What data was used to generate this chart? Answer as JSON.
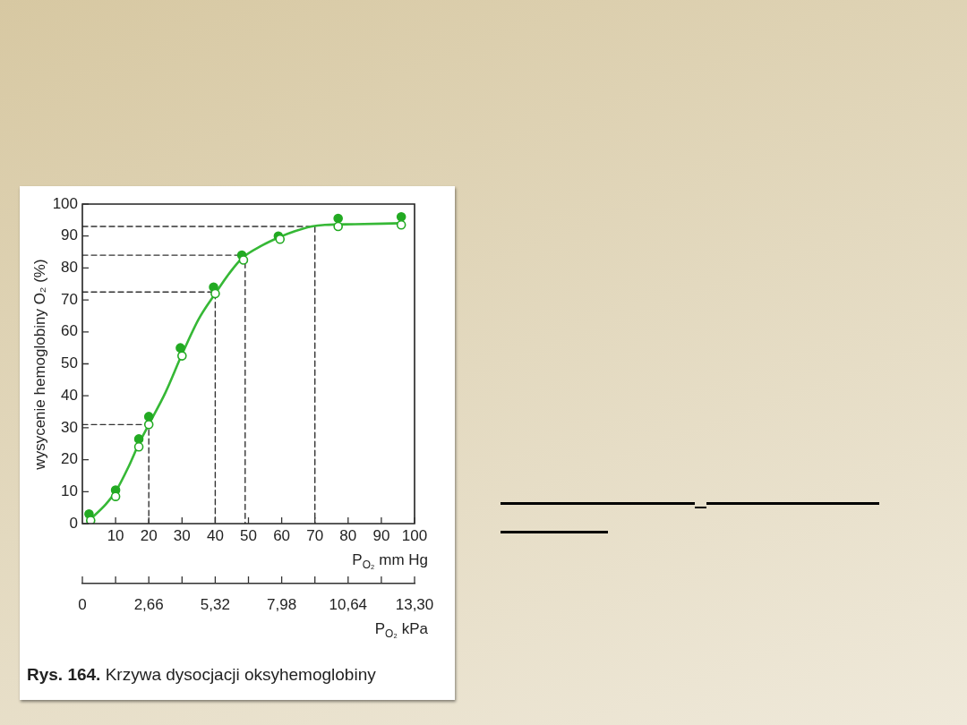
{
  "chart_data": {
    "type": "scatter",
    "title": "Rys. 164. Krzywa dysocjacji oksyhemoglobiny",
    "ylabel": "wysycenie hemoglobiny O₂ (%)",
    "xlabel": "P$_{O₂}$ mm Hg",
    "x2label": "P$_{O₂}$ kPa",
    "xlim": [
      0,
      100
    ],
    "xticks": [
      10,
      20,
      30,
      40,
      50,
      60,
      70,
      80,
      90,
      100
    ],
    "ylim": [
      0,
      100
    ],
    "yticks": [
      0,
      10,
      20,
      30,
      40,
      50,
      60,
      70,
      80,
      90,
      100
    ],
    "x2lim": [
      0,
      13.3
    ],
    "x2ticks": [
      0,
      {
        "value": 1.33,
        "label": null
      },
      {
        "value": 2.66,
        "label": "2,66"
      },
      {
        "value": 3.99,
        "label": null
      },
      {
        "value": 5.32,
        "label": "5,32"
      },
      {
        "value": 6.65,
        "label": null
      },
      {
        "value": 7.98,
        "label": "7,98"
      },
      {
        "value": 9.31,
        "label": null
      },
      {
        "value": 10.64,
        "label": "10,64"
      },
      {
        "value": 11.97,
        "label": null
      },
      {
        "value": 13.3,
        "label": "13,30"
      }
    ],
    "series": [
      {
        "type": "line",
        "color": "#333333",
        "marker": "none",
        "line_style": "dashed",
        "x": [
          0,
          20,
          20
        ],
        "values": [
          31,
          31,
          0
        ]
      },
      {
        "type": "line",
        "color": "#333333",
        "marker": "none",
        "line_style": "dashed",
        "x": [
          0,
          40,
          40
        ],
        "values": [
          72.5,
          72.5,
          0
        ]
      },
      {
        "type": "line",
        "color": "#333333",
        "marker": "none",
        "line_style": "dashed",
        "x": [
          0,
          49,
          49
        ],
        "values": [
          84,
          84,
          0
        ]
      },
      {
        "type": "line",
        "color": "#333333",
        "marker": "none",
        "line_style": "dashed",
        "x": [
          0,
          70,
          70
        ],
        "values": [
          93,
          93,
          0
        ]
      },
      {
        "type": "line",
        "color": "#36b836",
        "marker": "none",
        "line_style": "solid",
        "x": [
          2,
          7,
          10,
          14,
          17,
          20,
          25,
          30,
          35,
          40,
          44,
          48,
          54,
          59,
          64,
          69,
          73,
          82,
          96
        ],
        "values": [
          1,
          6,
          10,
          18,
          25,
          31,
          41,
          53,
          64,
          72,
          78,
          83,
          87,
          89.5,
          91.5,
          93,
          93.5,
          93.7,
          94
        ]
      },
      {
        "type": "scatter",
        "color": "#22aa22",
        "marker": "circle",
        "x": [
          2,
          10,
          17,
          20,
          29.5,
          39.5,
          48,
          59,
          77,
          96
        ],
        "values": [
          3,
          10.5,
          26.5,
          33.5,
          55,
          74,
          84,
          90,
          95.5,
          96
        ]
      },
      {
        "type": "scatter",
        "color": "#22aa22",
        "marker": "circle",
        "x": [
          2.5,
          10,
          17,
          20,
          30,
          40,
          48.5,
          59.5,
          77,
          96
        ],
        "values": [
          1,
          8.5,
          24,
          31,
          52.5,
          72,
          82.5,
          89,
          93,
          93.5
        ]
      }
    ]
  }
}
